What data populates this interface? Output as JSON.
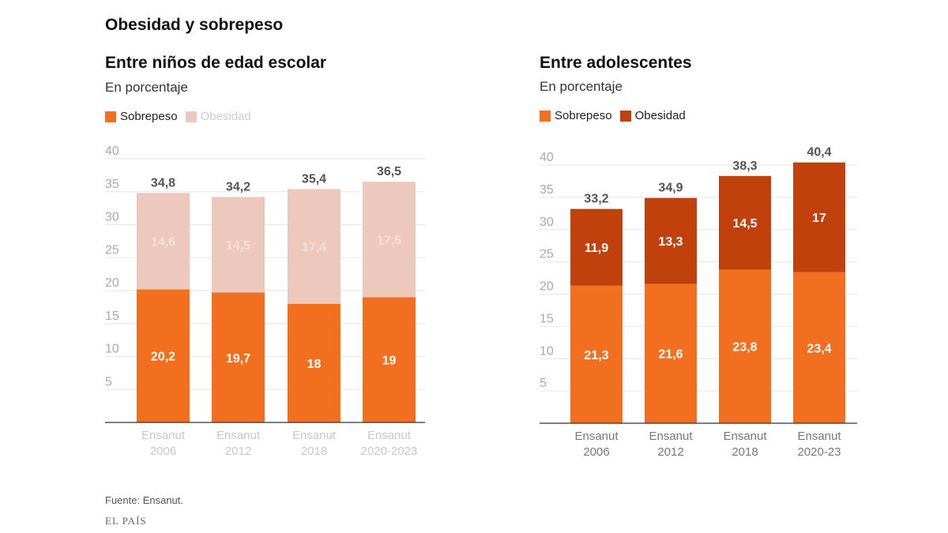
{
  "title": "Obesidad y sobrepeso",
  "source": "Fuente: Ensanut.",
  "logo": "EL PAÍS",
  "colors": {
    "sobrepeso": "#f26f1f",
    "obesidad_left": "#ecc9bc",
    "obesidad_right": "#c0410b"
  },
  "chart_data": [
    {
      "type": "bar",
      "stacked": true,
      "title": "Entre niños de edad escolar",
      "subtitle": "En porcentaje",
      "categories": [
        [
          "Ensanut",
          "2006"
        ],
        [
          "Ensanut",
          "2012"
        ],
        [
          "Ensanut",
          "2018"
        ],
        [
          "Ensanut",
          "2020-2023"
        ]
      ],
      "series": [
        {
          "name": "Sobrepeso",
          "values": [
            20.2,
            19.7,
            18,
            19
          ],
          "labels": [
            "20,2",
            "19,7",
            "18",
            "19"
          ],
          "color": "#f26f1f"
        },
        {
          "name": "Obesidad",
          "values": [
            14.6,
            14.5,
            17.4,
            17.5
          ],
          "labels": [
            "14,6",
            "14,5",
            "17,4",
            "17,5"
          ],
          "color": "#ecc9bc"
        }
      ],
      "totals": [
        "34,8",
        "34,2",
        "35,4",
        "36,5"
      ],
      "yticks": [
        5,
        10,
        15,
        20,
        25,
        30,
        35,
        40
      ],
      "ylim": [
        0,
        40
      ],
      "grid": true,
      "legend": "top-left"
    },
    {
      "type": "bar",
      "stacked": true,
      "title": "Entre adolescentes",
      "subtitle": "En porcentaje",
      "categories": [
        [
          "Ensanut",
          "2006"
        ],
        [
          "Ensanut",
          "2012"
        ],
        [
          "Ensanut",
          "2018"
        ],
        [
          "Ensanut",
          "2020-23"
        ]
      ],
      "series": [
        {
          "name": "Sobrepeso",
          "values": [
            21.3,
            21.6,
            23.8,
            23.4
          ],
          "labels": [
            "21,3",
            "21,6",
            "23,8",
            "23,4"
          ],
          "color": "#f26f1f"
        },
        {
          "name": "Obesidad",
          "values": [
            11.9,
            13.3,
            14.5,
            17
          ],
          "labels": [
            "11,9",
            "13,3",
            "14,5",
            "17"
          ],
          "color": "#c0410b"
        }
      ],
      "totals": [
        "33,2",
        "34,9",
        "38,3",
        "40,4"
      ],
      "yticks": [
        5,
        10,
        15,
        20,
        25,
        30,
        35,
        40
      ],
      "ylim": [
        0,
        40
      ],
      "grid": true,
      "legend": "top-left"
    }
  ]
}
